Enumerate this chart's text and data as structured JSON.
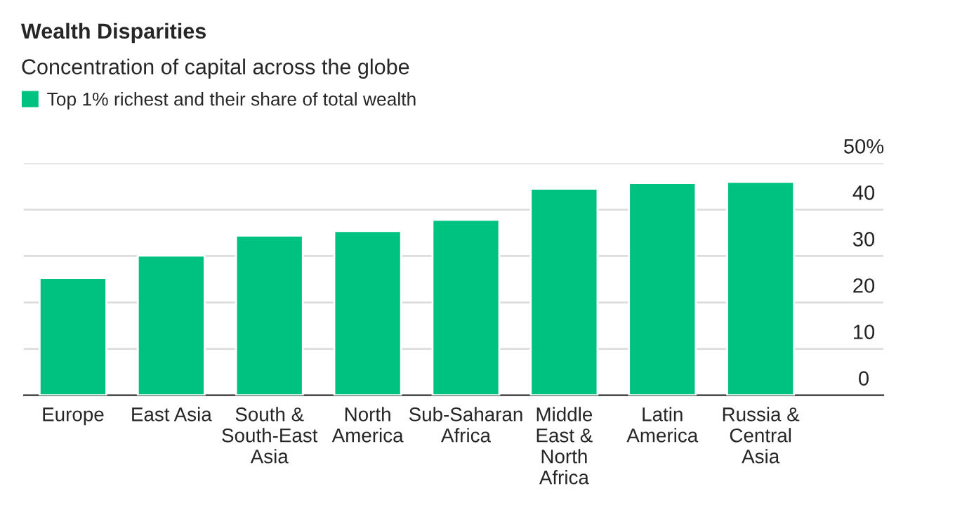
{
  "chart_data": {
    "type": "bar",
    "title": "Wealth Disparities",
    "subtitle": "Concentration of capital across the globe",
    "categories": [
      "Europe",
      "East Asia",
      "South &\nSouth-East\nAsia",
      "North\nAmerica",
      "Sub-Saharan\nAfrica",
      "Middle\nEast &\nNorth\nAfrica",
      "Latin\nAmerica",
      "Russia &\nCentral\nAsia"
    ],
    "series": [
      {
        "name": "Top 1% richest and their share of total wealth",
        "color": "#00c280",
        "values": [
          25.3,
          30.1,
          34.4,
          35.4,
          37.8,
          44.5,
          45.7,
          46.0
        ]
      }
    ],
    "ylim": [
      0,
      50
    ],
    "yticks": [
      0,
      10,
      20,
      30,
      40,
      {
        "value": 50,
        "label": "50%"
      }
    ],
    "grid": "y",
    "legend": "top left"
  }
}
